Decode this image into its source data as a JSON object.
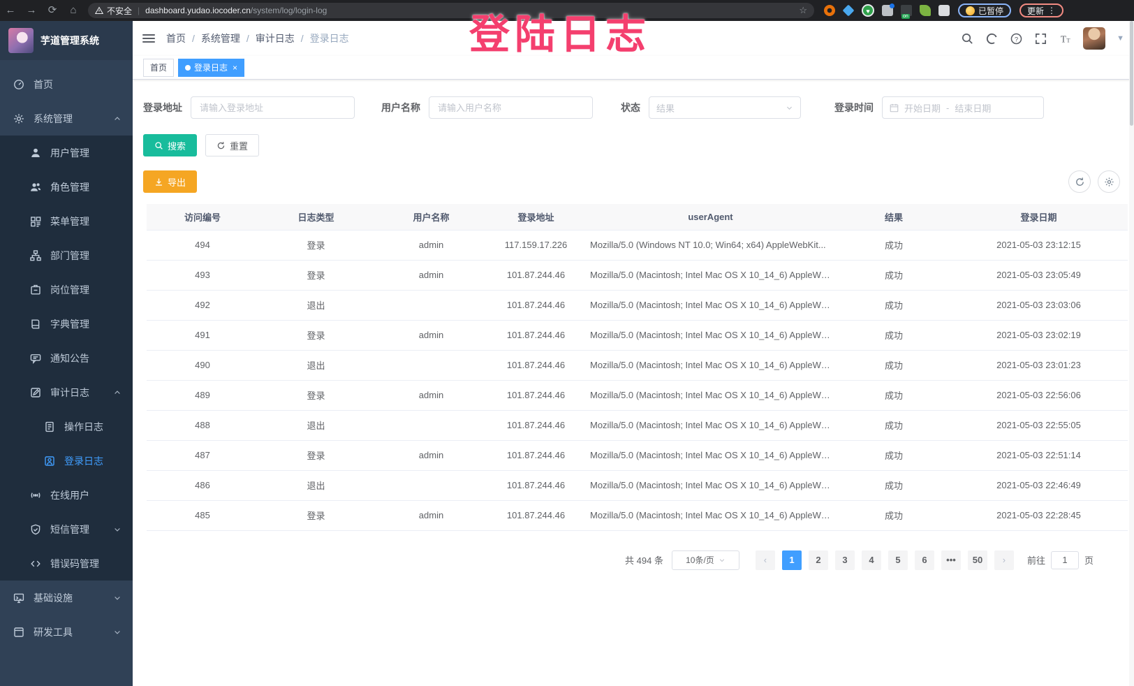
{
  "browser": {
    "security_label": "不安全",
    "url_host": "dashboard.yudao.iocoder.cn",
    "url_path": "/system/log/login-log",
    "paused_badge": "已暂停",
    "update_button": "更新"
  },
  "watermark": "登陆日志",
  "sidebar": {
    "logo_title": "芋道管理系统",
    "items": [
      {
        "name": "sidebar-item-home",
        "label": "首页",
        "level": 0,
        "icon": "dashboard-icon"
      },
      {
        "name": "sidebar-item-system",
        "label": "系统管理",
        "level": 0,
        "icon": "gear-icon",
        "arrow": "up"
      },
      {
        "name": "sidebar-item-users",
        "label": "用户管理",
        "level": 1,
        "icon": "user-icon"
      },
      {
        "name": "sidebar-item-roles",
        "label": "角色管理",
        "level": 1,
        "icon": "roles-icon"
      },
      {
        "name": "sidebar-item-menus",
        "label": "菜单管理",
        "level": 1,
        "icon": "menu-tree-icon"
      },
      {
        "name": "sidebar-item-depts",
        "label": "部门管理",
        "level": 1,
        "icon": "org-tree-icon"
      },
      {
        "name": "sidebar-item-posts",
        "label": "岗位管理",
        "level": 1,
        "icon": "post-icon"
      },
      {
        "name": "sidebar-item-dict",
        "label": "字典管理",
        "level": 1,
        "icon": "dict-icon"
      },
      {
        "name": "sidebar-item-notice",
        "label": "通知公告",
        "level": 1,
        "icon": "notice-icon"
      },
      {
        "name": "sidebar-item-audit-log",
        "label": "审计日志",
        "level": 1,
        "icon": "audit-log-icon",
        "arrow": "up"
      },
      {
        "name": "sidebar-item-operation-log",
        "label": "操作日志",
        "level": 2,
        "icon": "operation-log-icon"
      },
      {
        "name": "sidebar-item-login-log",
        "label": "登录日志",
        "level": 2,
        "icon": "login-log-icon",
        "active": true
      },
      {
        "name": "sidebar-item-online-users",
        "label": "在线用户",
        "level": 1,
        "icon": "online-users-icon"
      },
      {
        "name": "sidebar-item-sms",
        "label": "短信管理",
        "level": 1,
        "icon": "sms-icon",
        "arrow": "down"
      },
      {
        "name": "sidebar-item-error-code",
        "label": "错误码管理",
        "level": 1,
        "icon": "error-code-icon"
      },
      {
        "name": "sidebar-item-infra",
        "label": "基础设施",
        "level": 0,
        "icon": "infra-icon",
        "arrow": "down"
      },
      {
        "name": "sidebar-item-devtools",
        "label": "研发工具",
        "level": 0,
        "icon": "devtools-icon",
        "arrow": "down"
      }
    ]
  },
  "breadcrumb": [
    "首页",
    "系统管理",
    "审计日志",
    "登录日志"
  ],
  "tabs": [
    {
      "label": "首页",
      "active": false
    },
    {
      "label": "登录日志",
      "active": true,
      "close": "×"
    }
  ],
  "filters": {
    "login_address_label": "登录地址",
    "login_address_placeholder": "请输入登录地址",
    "username_label": "用户名称",
    "username_placeholder": "请输入用户名称",
    "status_label": "状态",
    "status_placeholder": "结果",
    "login_time_label": "登录时间",
    "date_start_placeholder": "开始日期",
    "date_separator": "-",
    "date_end_placeholder": "结束日期"
  },
  "actions": {
    "search_label": "搜索",
    "reset_label": "重置",
    "export_label": "导出"
  },
  "table": {
    "columns": [
      "访问编号",
      "日志类型",
      "用户名称",
      "登录地址",
      "userAgent",
      "结果",
      "登录日期"
    ],
    "rows": [
      [
        "494",
        "登录",
        "admin",
        "117.159.17.226",
        "Mozilla/5.0 (Windows NT 10.0; Win64; x64) AppleWebKit...",
        "成功",
        "2021-05-03 23:12:15"
      ],
      [
        "493",
        "登录",
        "admin",
        "101.87.244.46",
        "Mozilla/5.0 (Macintosh; Intel Mac OS X 10_14_6) AppleWe...",
        "成功",
        "2021-05-03 23:05:49"
      ],
      [
        "492",
        "退出",
        "",
        "101.87.244.46",
        "Mozilla/5.0 (Macintosh; Intel Mac OS X 10_14_6) AppleWe...",
        "成功",
        "2021-05-03 23:03:06"
      ],
      [
        "491",
        "登录",
        "admin",
        "101.87.244.46",
        "Mozilla/5.0 (Macintosh; Intel Mac OS X 10_14_6) AppleWe...",
        "成功",
        "2021-05-03 23:02:19"
      ],
      [
        "490",
        "退出",
        "",
        "101.87.244.46",
        "Mozilla/5.0 (Macintosh; Intel Mac OS X 10_14_6) AppleWe...",
        "成功",
        "2021-05-03 23:01:23"
      ],
      [
        "489",
        "登录",
        "admin",
        "101.87.244.46",
        "Mozilla/5.0 (Macintosh; Intel Mac OS X 10_14_6) AppleWe...",
        "成功",
        "2021-05-03 22:56:06"
      ],
      [
        "488",
        "退出",
        "",
        "101.87.244.46",
        "Mozilla/5.0 (Macintosh; Intel Mac OS X 10_14_6) AppleWe...",
        "成功",
        "2021-05-03 22:55:05"
      ],
      [
        "487",
        "登录",
        "admin",
        "101.87.244.46",
        "Mozilla/5.0 (Macintosh; Intel Mac OS X 10_14_6) AppleWe...",
        "成功",
        "2021-05-03 22:51:14"
      ],
      [
        "486",
        "退出",
        "",
        "101.87.244.46",
        "Mozilla/5.0 (Macintosh; Intel Mac OS X 10_14_6) AppleWe...",
        "成功",
        "2021-05-03 22:46:49"
      ],
      [
        "485",
        "登录",
        "admin",
        "101.87.244.46",
        "Mozilla/5.0 (Macintosh; Intel Mac OS X 10_14_6) AppleWe...",
        "成功",
        "2021-05-03 22:28:45"
      ]
    ]
  },
  "pagination": {
    "total_text": "共 494 条",
    "page_size": "10条/页",
    "pages": [
      "1",
      "2",
      "3",
      "4",
      "5",
      "6",
      "•••",
      "50"
    ],
    "active_page": "1",
    "goto_label": "前往",
    "goto_value": "1",
    "goto_suffix": "页"
  },
  "colors": {
    "primary": "#409EFF",
    "sidebar_bg": "#304156",
    "submenu_bg": "#1f2d3d",
    "search_btn": "#18bc9c",
    "export_btn": "#f5a623",
    "watermark": "#f43f6e"
  }
}
